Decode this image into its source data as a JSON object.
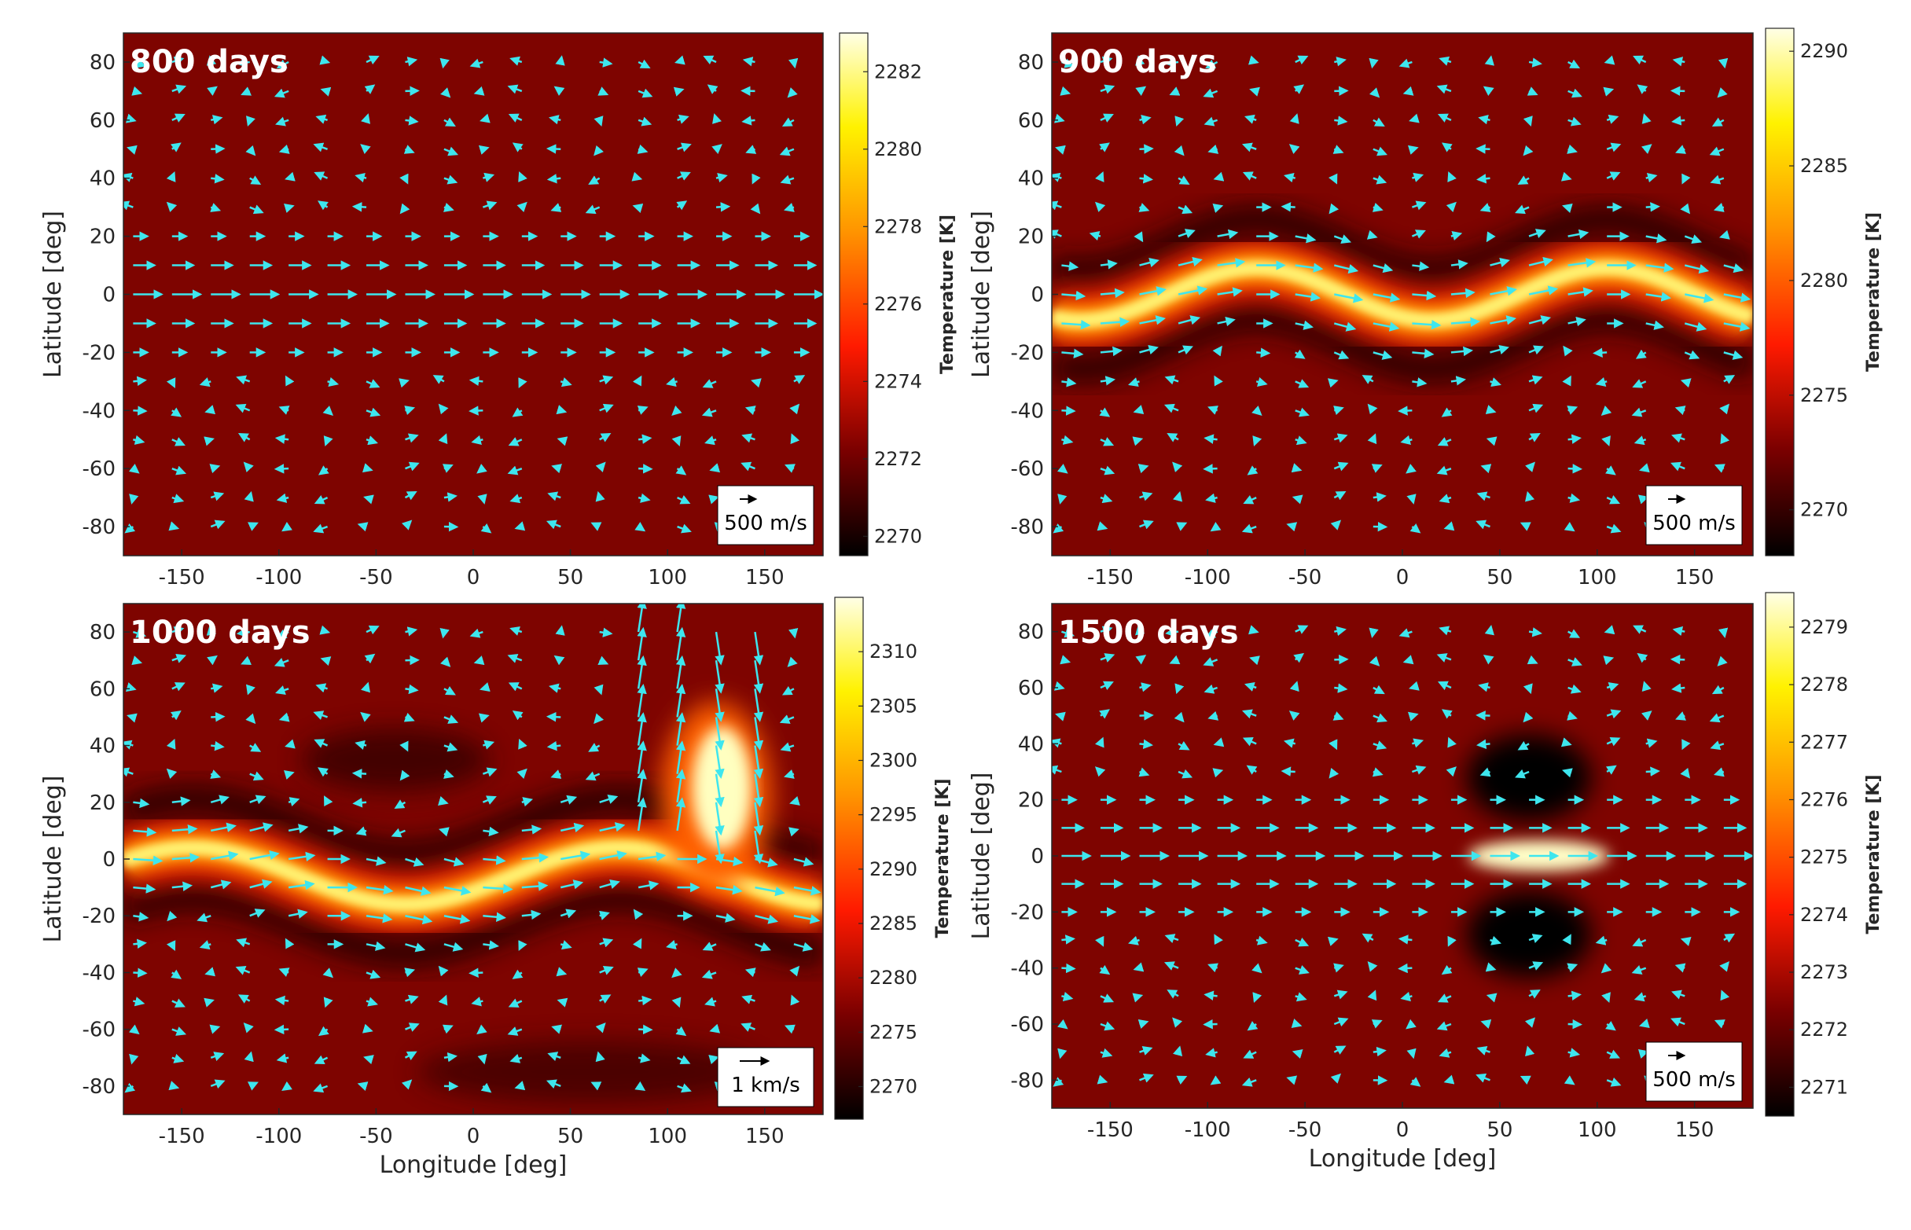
{
  "colors": {
    "arrow": "#3ee6ee",
    "frame": "#262626",
    "background": "#ffffff"
  },
  "shared": {
    "xlabel": "Longitude [deg]",
    "ylabel": "Latitude [deg]",
    "colorbar_label": "Temperature [K]",
    "xlim": [
      -180,
      180
    ],
    "ylim": [
      -90,
      90
    ],
    "xticks": [
      -150,
      -100,
      -50,
      0,
      50,
      100,
      150
    ],
    "yticks": [
      -80,
      -60,
      -40,
      -20,
      0,
      20,
      40,
      60,
      80
    ]
  },
  "chart_data": [
    {
      "type": "heatmap",
      "title": "800 days",
      "field": "temperature with wind vectors",
      "pattern": "straight equatorial hot jet",
      "colorbar": {
        "min": 2269.5,
        "max": 2283,
        "ticks": [
          2270,
          2272,
          2274,
          2276,
          2278,
          2280,
          2282
        ]
      },
      "wind_key": "500 m/s",
      "show_xlabel": false,
      "show_ylabel": true
    },
    {
      "type": "heatmap",
      "title": "900 days",
      "field": "temperature with wind vectors",
      "pattern": "wavy equatorial jet (wavenumber 2)",
      "colorbar": {
        "min": 2268,
        "max": 2291,
        "ticks": [
          2270,
          2275,
          2280,
          2285,
          2290
        ]
      },
      "wind_key": "500 m/s",
      "show_xlabel": false,
      "show_ylabel": true
    },
    {
      "type": "heatmap",
      "title": "1000 days",
      "field": "temperature with wind vectors",
      "pattern": "broken jet with hot vortex near 125E, 25N",
      "colorbar": {
        "min": 2267,
        "max": 2315,
        "ticks": [
          2270,
          2275,
          2280,
          2285,
          2290,
          2295,
          2300,
          2305,
          2310
        ]
      },
      "wind_key": "1 km/s",
      "show_xlabel": true,
      "show_ylabel": true
    },
    {
      "type": "heatmap",
      "title": "1500 days",
      "field": "temperature with wind vectors",
      "pattern": "straight jet with hot spot near 70E",
      "colorbar": {
        "min": 2270.5,
        "max": 2279.6,
        "ticks": [
          2271,
          2272,
          2273,
          2274,
          2275,
          2276,
          2277,
          2278,
          2279
        ]
      },
      "wind_key": "500 m/s",
      "show_xlabel": true,
      "show_ylabel": true
    }
  ]
}
